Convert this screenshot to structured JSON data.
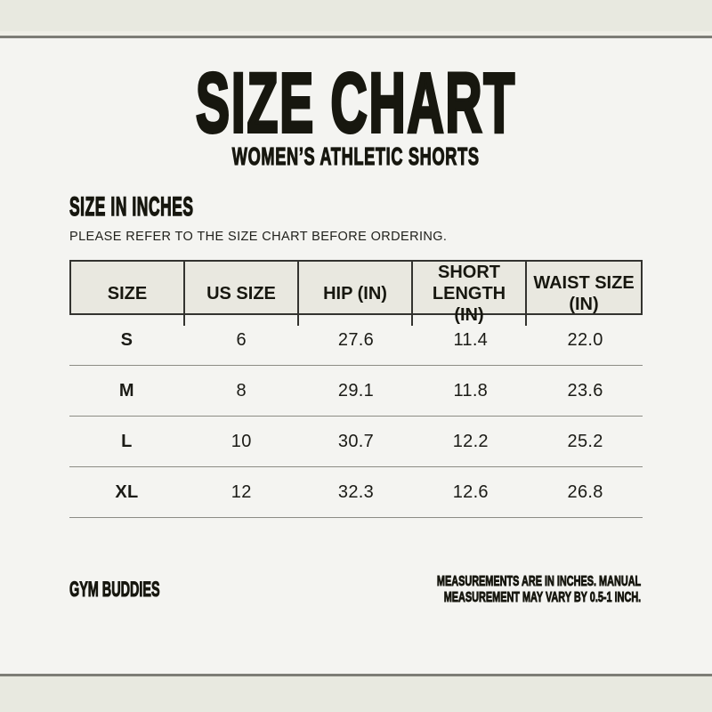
{
  "header": {
    "title": "SIZE CHART",
    "subtitle": "WOMEN’S ATHLETIC SHORTS"
  },
  "section": {
    "heading": "SIZE IN INCHES",
    "note": "PLEASE REFER TO THE SIZE CHART BEFORE ORDERING."
  },
  "chart_data": {
    "type": "table",
    "title": "SIZE CHART",
    "subtitle": "WOMEN’S ATHLETIC SHORTS",
    "unit": "inches",
    "columns": [
      "SIZE",
      "US SIZE",
      "HIP (IN)",
      "SHORT LENGTH (IN)",
      "WAIST SIZE (IN)"
    ],
    "rows": [
      [
        "S",
        "6",
        "27.6",
        "11.4",
        "22.0"
      ],
      [
        "M",
        "8",
        "29.1",
        "11.8",
        "23.6"
      ],
      [
        "L",
        "10",
        "30.7",
        "12.2",
        "25.2"
      ],
      [
        "XL",
        "12",
        "32.3",
        "12.6",
        "26.8"
      ]
    ]
  },
  "footer": {
    "brand": "GYM BUDDIES",
    "note_line1": "MEASUREMENTS ARE IN INCHES. MANUAL",
    "note_line2": "MEASUREMENT MAY VARY BY 0.5-1 INCH."
  },
  "colors": {
    "band": "#e8e9e0",
    "rule": "#7d7d76",
    "background": "#f4f4f1",
    "header_cell_background": "#e9e8e0",
    "table_border": "#33332f",
    "row_line": "#8c8c85",
    "text": "#17170f"
  }
}
